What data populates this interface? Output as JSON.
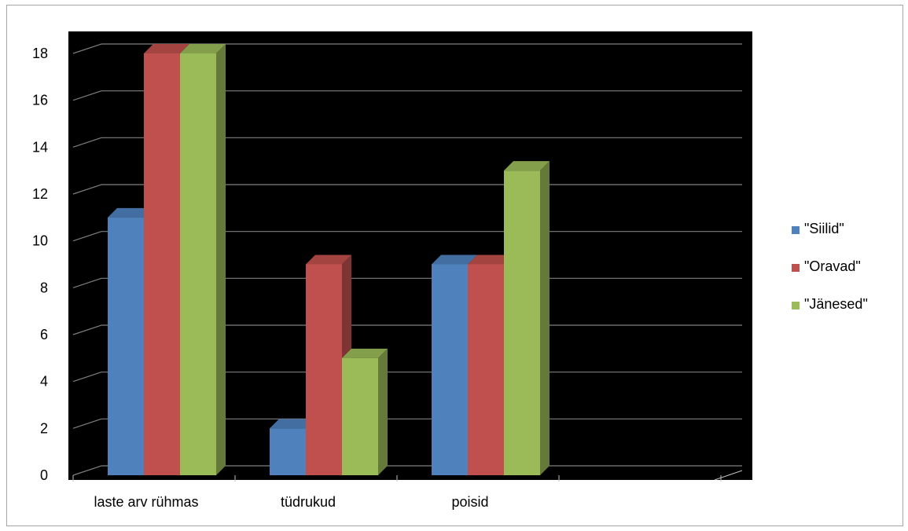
{
  "chart_data": {
    "type": "bar",
    "title": "",
    "xlabel": "",
    "ylabel": "",
    "ylim": [
      0,
      18
    ],
    "yticks": [
      0,
      2,
      4,
      6,
      8,
      10,
      12,
      14,
      16,
      18
    ],
    "categories": [
      "laste arv rühmas",
      "tüdrukud",
      "poisid",
      ""
    ],
    "series": [
      {
        "name": "\"Siilid\"",
        "color": "#4f81bd",
        "values": [
          11,
          2,
          9,
          null
        ]
      },
      {
        "name": "\"Oravad\"",
        "color": "#c0504d",
        "values": [
          18,
          9,
          9,
          null
        ]
      },
      {
        "name": "\"Jänesed\"",
        "color": "#9bbb59",
        "values": [
          18,
          5,
          13,
          null
        ]
      }
    ],
    "plot_background": "#000000",
    "gridline_color": "#7f7f7f",
    "grid": true,
    "legend_position": "right"
  }
}
